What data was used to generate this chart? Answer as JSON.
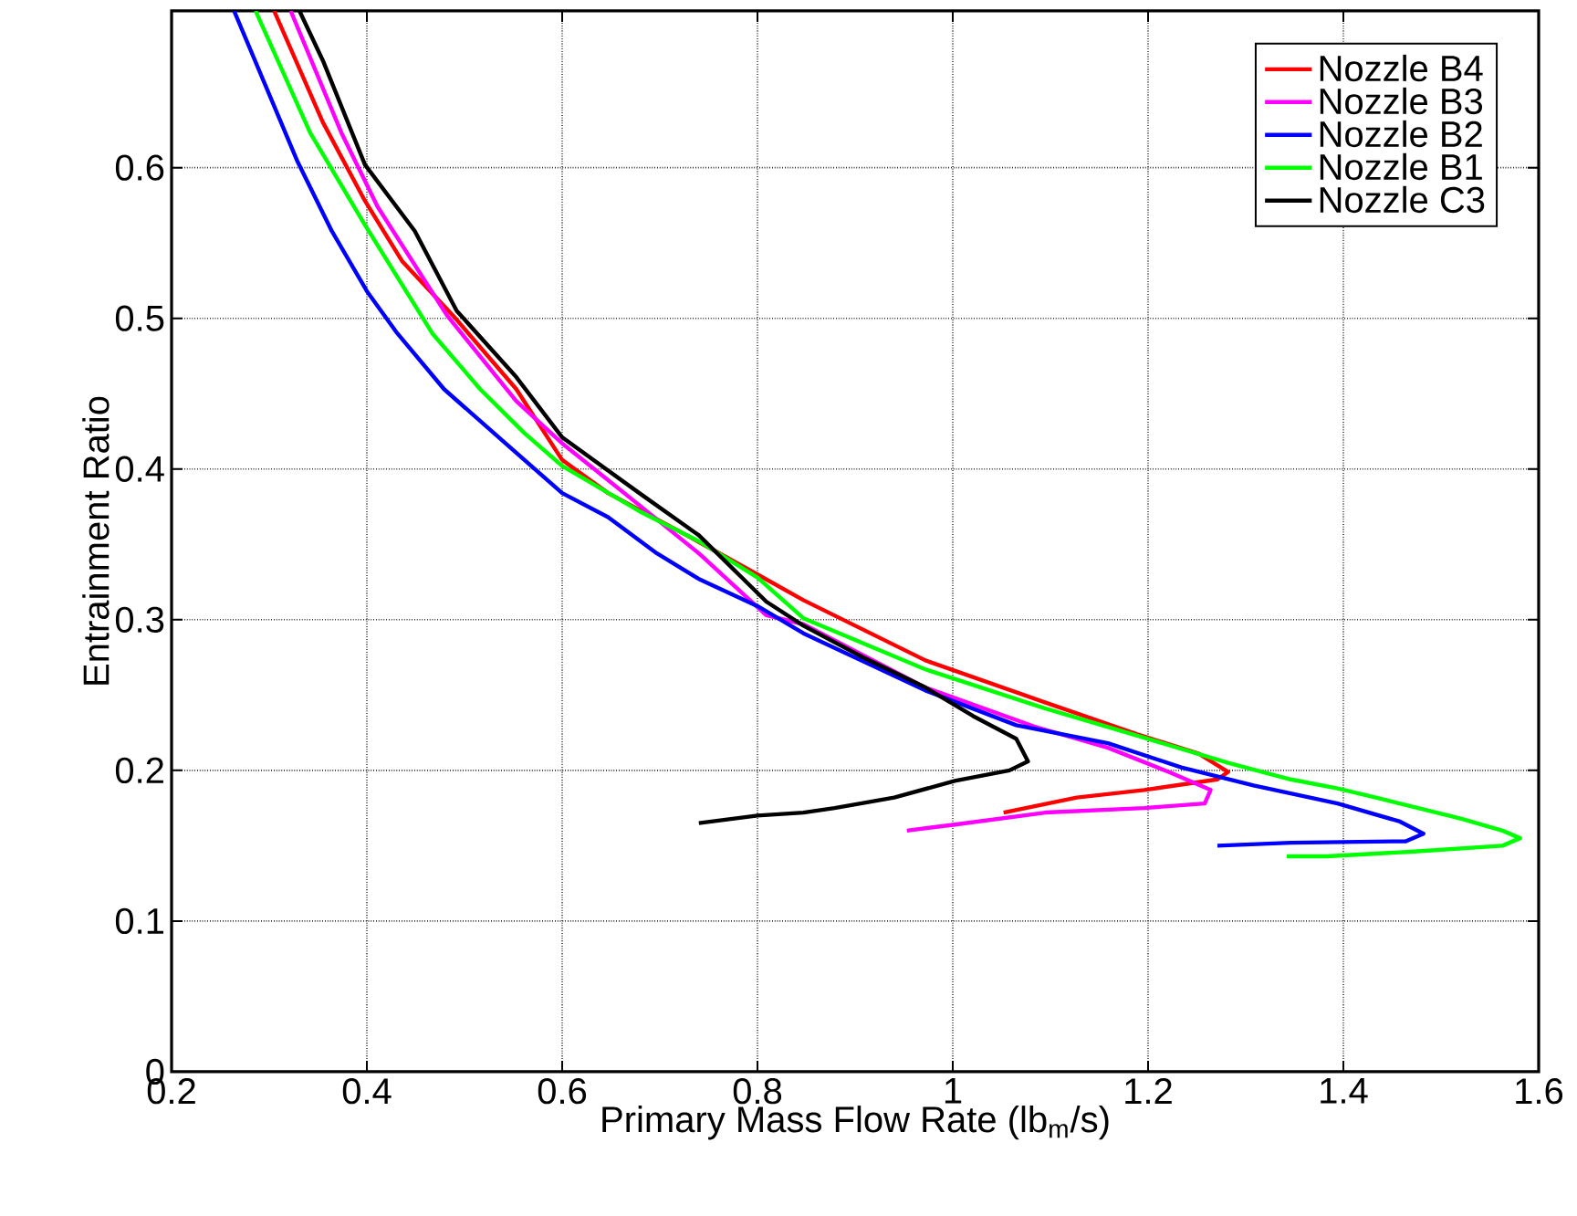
{
  "chart_data": {
    "type": "line",
    "xlabel": "Primary Mass Flow Rate (lb$_{m}$/s)",
    "ylabel": "Entrainment Ratio",
    "xlim": [
      0.2,
      1.6
    ],
    "ylim": [
      0,
      0.704
    ],
    "xticks": [
      0.2,
      0.4,
      0.6,
      0.8,
      1,
      1.2,
      1.4,
      1.6
    ],
    "yticks": [
      0,
      0.1,
      0.2,
      0.3,
      0.4,
      0.5,
      0.6
    ],
    "grid": true,
    "legend": "top right",
    "series": [
      {
        "name": "Nozzle B4",
        "color": "#ff0000",
        "x": [
          0.305,
          0.355,
          0.398,
          0.436,
          0.488,
          0.553,
          0.6,
          0.647,
          0.722,
          0.8,
          0.847,
          0.972,
          1.095,
          1.189,
          1.252,
          1.282,
          1.271,
          1.196,
          1.127,
          1.052
        ],
        "values": [
          0.704,
          0.63,
          0.578,
          0.538,
          0.502,
          0.453,
          0.406,
          0.384,
          0.358,
          0.33,
          0.313,
          0.273,
          0.245,
          0.224,
          0.211,
          0.199,
          0.194,
          0.187,
          0.182,
          0.172
        ]
      },
      {
        "name": "Nozzle B3",
        "color": "#ff00ff",
        "x": [
          0.322,
          0.374,
          0.411,
          0.482,
          0.553,
          0.6,
          0.679,
          0.74,
          0.809,
          0.847,
          0.972,
          1.084,
          1.159,
          1.221,
          1.264,
          1.258,
          1.196,
          1.095,
          1.002,
          0.953
        ],
        "values": [
          0.704,
          0.623,
          0.574,
          0.502,
          0.445,
          0.417,
          0.376,
          0.344,
          0.303,
          0.297,
          0.255,
          0.229,
          0.215,
          0.199,
          0.187,
          0.178,
          0.175,
          0.172,
          0.164,
          0.16
        ]
      },
      {
        "name": "Nozzle B2",
        "color": "#0000ff",
        "x": [
          0.264,
          0.329,
          0.364,
          0.4,
          0.43,
          0.479,
          0.542,
          0.6,
          0.647,
          0.697,
          0.74,
          0.8,
          0.847,
          0.972,
          1.065,
          1.159,
          1.234,
          1.308,
          1.394,
          1.458,
          1.482,
          1.464,
          1.346,
          1.271
        ],
        "values": [
          0.704,
          0.604,
          0.558,
          0.518,
          0.491,
          0.453,
          0.417,
          0.384,
          0.368,
          0.344,
          0.327,
          0.309,
          0.291,
          0.253,
          0.23,
          0.218,
          0.202,
          0.19,
          0.178,
          0.166,
          0.158,
          0.153,
          0.152,
          0.15
        ]
      },
      {
        "name": "Nozzle B1",
        "color": "#00ff00",
        "x": [
          0.286,
          0.342,
          0.398,
          0.467,
          0.516,
          0.561,
          0.6,
          0.679,
          0.74,
          0.8,
          0.847,
          0.972,
          1.095,
          1.189,
          1.282,
          1.346,
          1.394,
          1.439,
          1.52,
          1.563,
          1.581,
          1.563,
          1.469,
          1.383,
          1.342
        ],
        "values": [
          0.704,
          0.623,
          0.562,
          0.49,
          0.453,
          0.424,
          0.402,
          0.372,
          0.352,
          0.328,
          0.301,
          0.267,
          0.241,
          0.223,
          0.205,
          0.194,
          0.188,
          0.181,
          0.168,
          0.16,
          0.155,
          0.15,
          0.146,
          0.143,
          0.143
        ]
      },
      {
        "name": "Nozzle C3",
        "color": "#000000",
        "x": [
          0.331,
          0.355,
          0.398,
          0.449,
          0.492,
          0.553,
          0.6,
          0.679,
          0.74,
          0.809,
          0.847,
          0.908,
          0.972,
          1.021,
          1.065,
          1.077,
          1.058,
          1.002,
          0.94,
          0.879,
          0.847,
          0.8,
          0.74
        ],
        "values": [
          0.704,
          0.671,
          0.602,
          0.558,
          0.505,
          0.461,
          0.421,
          0.384,
          0.356,
          0.312,
          0.296,
          0.275,
          0.255,
          0.236,
          0.221,
          0.206,
          0.2,
          0.193,
          0.182,
          0.175,
          0.172,
          0.17,
          0.165
        ]
      }
    ]
  }
}
